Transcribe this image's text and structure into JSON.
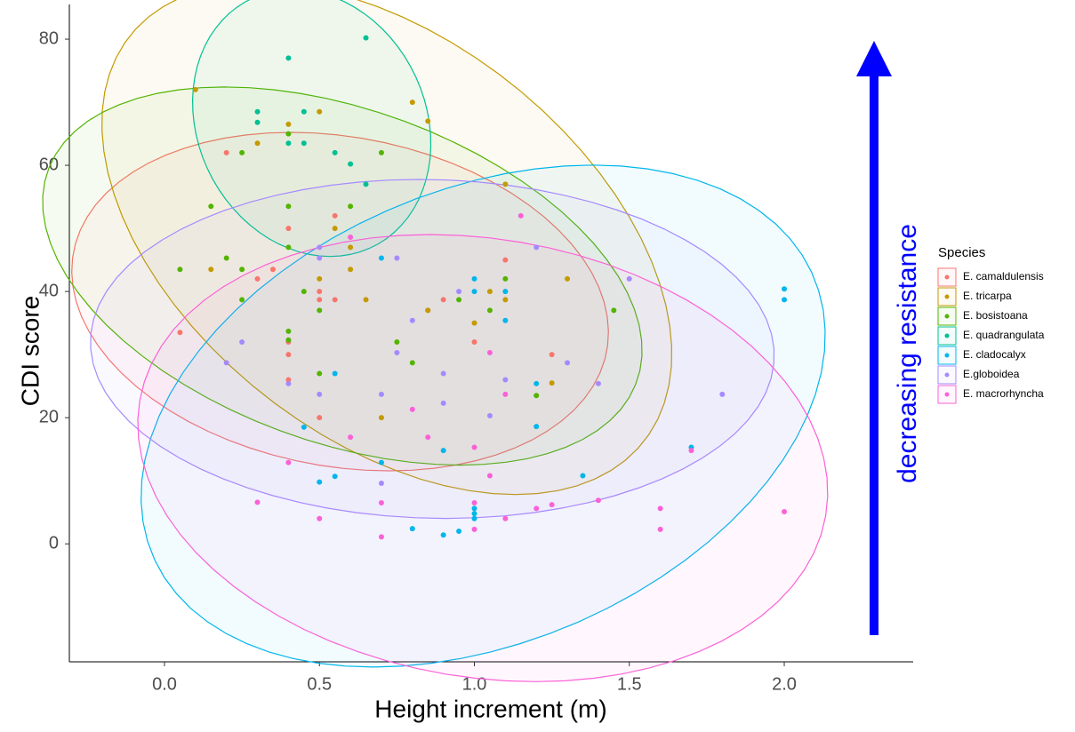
{
  "chart_data": {
    "type": "scatter",
    "x_label": "Height increment (m)",
    "y_label": "CDI score",
    "annotation": "decreasing resistance",
    "legend_title": "Species",
    "legend_position": "right",
    "xlim": [
      -0.307,
      2.416
    ],
    "ylim": [
      -18.7,
      85.5
    ],
    "xticks": [
      {
        "value": 0,
        "label": "0.0"
      },
      0.5,
      {
        "value": 1,
        "label": "1.0"
      },
      1.5,
      {
        "value": 2,
        "label": "2.0"
      }
    ],
    "yticks": [
      0,
      20,
      40,
      60,
      80
    ],
    "grid": false,
    "ellipses": true,
    "series": [
      {
        "name": "E. camaldulensis",
        "color": "#F8766D",
        "x": [
          0.05,
          0.2,
          0.3,
          0.35,
          0.4,
          0.4,
          0.4,
          0.4,
          0.5,
          0.5,
          0.5,
          0.55,
          0.55,
          0.85,
          0.9,
          1.0,
          1.1,
          1.25
        ],
        "values": [
          33.5,
          62,
          42,
          43.5,
          50,
          32,
          30,
          26,
          40,
          38.7,
          20,
          52,
          38.7,
          37,
          38.7,
          32,
          45,
          30
        ]
      },
      {
        "name": "E. tricarpa",
        "color": "#C49A00",
        "x": [
          0.1,
          0.15,
          0.3,
          0.4,
          0.5,
          0.5,
          0.55,
          0.6,
          0.6,
          0.65,
          0.7,
          0.8,
          0.85,
          0.85,
          1.0,
          1.05,
          1.1,
          1.1,
          1.25,
          1.3
        ],
        "values": [
          72,
          43.5,
          63.5,
          66.5,
          68.5,
          42,
          50,
          47,
          43.5,
          38.7,
          20,
          70,
          67,
          37,
          35,
          40,
          57,
          38.7,
          25.5,
          42
        ]
      },
      {
        "name": "E. bosistoana",
        "color": "#53B400",
        "x": [
          0.05,
          0.15,
          0.2,
          0.25,
          0.25,
          0.25,
          0.4,
          0.4,
          0.4,
          0.4,
          0.4,
          0.45,
          0.5,
          0.5,
          0.6,
          0.7,
          0.8,
          0.75,
          0.95,
          1.05,
          1.1,
          1.2,
          1.45
        ],
        "values": [
          43.5,
          53.5,
          45.3,
          62,
          43.5,
          38.7,
          65,
          53.5,
          47,
          33.7,
          32.3,
          40,
          37,
          27,
          53.5,
          62,
          28.7,
          32,
          38.7,
          37,
          42,
          23.5,
          37
        ]
      },
      {
        "name": "E. quadrangulata",
        "color": "#00C094",
        "x": [
          0.3,
          0.3,
          0.4,
          0.4,
          0.45,
          0.45,
          0.55,
          0.6,
          0.65,
          0.65
        ],
        "values": [
          68.5,
          66.8,
          77,
          63.5,
          68.5,
          63.5,
          62,
          60.2,
          80.2,
          57
        ]
      },
      {
        "name": "E. cladocalyx",
        "color": "#00B6EB",
        "x": [
          0.45,
          0.5,
          0.55,
          0.55,
          0.7,
          0.7,
          0.8,
          0.9,
          0.9,
          0.95,
          1.0,
          1.0,
          1.0,
          1.0,
          1.0,
          1.1,
          1.1,
          1.2,
          1.2,
          1.35,
          1.7,
          2.0,
          2.0
        ],
        "values": [
          18.5,
          9.8,
          27,
          10.7,
          45.3,
          12.9,
          2.4,
          14.8,
          1.4,
          2,
          42,
          40,
          5.6,
          4.8,
          4,
          40,
          35.4,
          25.4,
          18.6,
          10.8,
          15.3,
          40.4,
          38.7
        ]
      },
      {
        "name": "E.globoidea",
        "color": "#A58AFF",
        "x": [
          0.2,
          0.25,
          0.4,
          0.5,
          0.5,
          0.5,
          0.7,
          0.7,
          0.75,
          0.75,
          0.8,
          0.9,
          0.9,
          0.95,
          1.05,
          1.1,
          1.2,
          1.3,
          1.4,
          1.5,
          1.8
        ],
        "values": [
          28.7,
          32,
          25.4,
          47,
          45.3,
          23.7,
          23.7,
          9.6,
          45.3,
          30.3,
          35.4,
          27,
          22.3,
          40,
          20.3,
          26,
          47,
          28.7,
          25.4,
          42,
          23.7
        ]
      },
      {
        "name": "E. macrorhyncha",
        "color": "#FB61D7",
        "x": [
          0.3,
          0.4,
          0.5,
          0.6,
          0.6,
          0.7,
          0.7,
          0.8,
          0.85,
          1.0,
          1.0,
          1.0,
          1.05,
          1.05,
          1.1,
          1.1,
          1.15,
          1.2,
          1.25,
          1.4,
          1.6,
          1.6,
          1.7,
          2.0
        ],
        "values": [
          6.6,
          12.9,
          4,
          48.6,
          16.9,
          1.1,
          6.5,
          21.3,
          16.9,
          15.3,
          6.5,
          2.3,
          30.3,
          10.8,
          23.7,
          4,
          52,
          5.6,
          6.2,
          6.9,
          5.6,
          2.3,
          14.8,
          5.1
        ]
      }
    ]
  }
}
